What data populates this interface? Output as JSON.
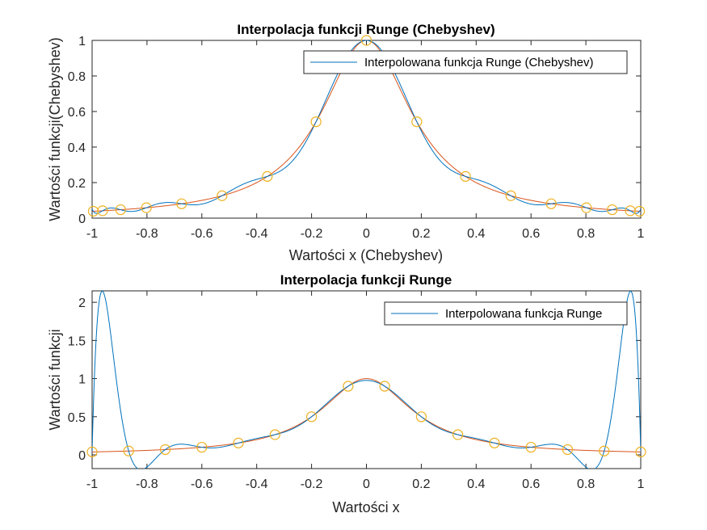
{
  "colors": {
    "interp": "#0072BD",
    "runge": "#D95319",
    "nodes": "#EDB120",
    "axis": "#262626"
  },
  "chart_data": [
    {
      "type": "line",
      "title": "Interpolacja funkcji Runge (Chebyshev)",
      "xlabel": "Wartości x (Chebyshev)",
      "ylabel": "Wartości funkcji(Chebyshev)",
      "xlim": [
        -1,
        1
      ],
      "ylim": [
        0,
        1
      ],
      "xticks": [
        "-1",
        "-0.8",
        "-0.6",
        "-0.4",
        "-0.2",
        "0",
        "0.2",
        "0.4",
        "0.6",
        "0.8",
        "1"
      ],
      "yticks": [
        "0",
        "0.2",
        "0.4",
        "0.6",
        "0.8",
        "1"
      ],
      "legend": {
        "position": "top-right",
        "entries": [
          "Interpolowana funkcja Runge (Chebyshev)"
        ]
      },
      "series": [
        {
          "name": "Interpolowana funkcja Runge (Chebyshev)",
          "kind": "chebyshev_interpolant",
          "color": "#0072BD"
        },
        {
          "kind": "runge_function",
          "color": "#D95319"
        }
      ],
      "nodes": {
        "x": [
          -0.9957,
          -0.9618,
          -0.896,
          -0.8021,
          -0.6737,
          -0.5264,
          -0.3612,
          -0.1837,
          0.0,
          0.1837,
          0.3612,
          0.5264,
          0.6737,
          0.8021,
          0.896,
          0.9618,
          0.9957
        ],
        "y": [
          0.0388,
          0.0415,
          0.0474,
          0.0585,
          0.081,
          0.1261,
          0.2347,
          0.5422,
          1.0,
          0.5422,
          0.2347,
          0.1261,
          0.081,
          0.0585,
          0.0474,
          0.0415,
          0.0388
        ]
      }
    },
    {
      "type": "line",
      "title": "Interpolacja funkcji Runge",
      "xlabel": "Wartości x",
      "ylabel": "Wartości funkcji",
      "xlim": [
        -1,
        1
      ],
      "ylim": [
        -0.18,
        2.15
      ],
      "xticks": [
        "-1",
        "-0.8",
        "-0.6",
        "-0.4",
        "-0.2",
        "0",
        "0.2",
        "0.4",
        "0.6",
        "0.8",
        "1"
      ],
      "yticks": [
        "0",
        "0.5",
        "1",
        "1.5",
        "2"
      ],
      "legend": {
        "position": "top-right",
        "entries": [
          "Interpolowana funkcja Runge"
        ]
      },
      "series": [
        {
          "name": "Interpolowana funkcja Runge",
          "kind": "equispaced_interpolant",
          "color": "#0072BD"
        },
        {
          "kind": "runge_function",
          "color": "#D95319"
        }
      ],
      "nodes": {
        "x": [
          -1.0,
          -0.8667,
          -0.7333,
          -0.6,
          -0.4667,
          -0.3333,
          -0.2,
          -0.0667,
          0.0667,
          0.2,
          0.3333,
          0.4667,
          0.6,
          0.7333,
          0.8667,
          1.0
        ],
        "y": [
          0.0385,
          0.0506,
          0.0692,
          0.1,
          0.1552,
          0.2647,
          0.5,
          0.9,
          0.9,
          0.5,
          0.2647,
          0.1552,
          0.1,
          0.0692,
          0.0506,
          0.0385
        ]
      }
    }
  ]
}
